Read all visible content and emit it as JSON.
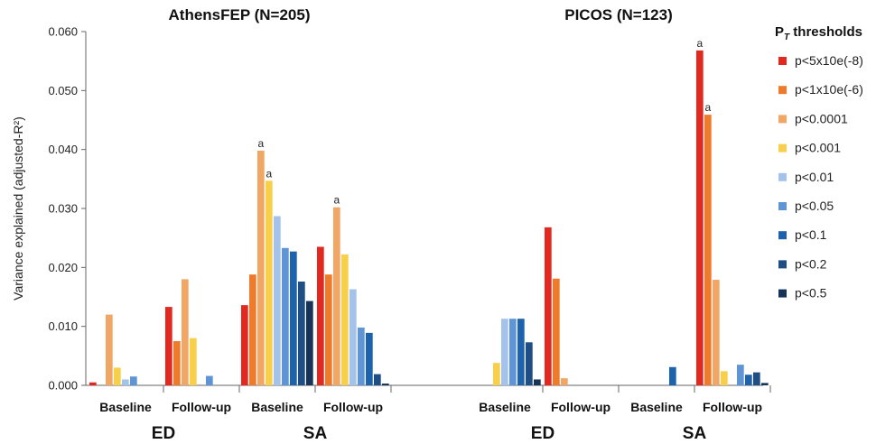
{
  "chart_data": {
    "type": "bar",
    "ylabel": "Variance explained (adjusted-R²)",
    "ylim": [
      0,
      0.06
    ],
    "yticks": [
      "0.000",
      "0.010",
      "0.020",
      "0.030",
      "0.040",
      "0.050",
      "0.060"
    ],
    "legend": {
      "title_main": "P",
      "title_sub": "T",
      "title_rest": " thresholds",
      "position": "right"
    },
    "series": [
      {
        "name": "p<5x10e(-8)",
        "color": "#e3281f"
      },
      {
        "name": "p<1x10e(-6)",
        "color": "#ee7a2c"
      },
      {
        "name": "p<0.0001",
        "color": "#f2a664"
      },
      {
        "name": "p<0.001",
        "color": "#f7cf4b"
      },
      {
        "name": "p<0.01",
        "color": "#a4c3ea"
      },
      {
        "name": "p<0.05",
        "color": "#5f95d4"
      },
      {
        "name": "p<0.1",
        "color": "#1c62ad"
      },
      {
        "name": "p<0.2",
        "color": "#1f4e85"
      },
      {
        "name": "p<0.5",
        "color": "#163459"
      }
    ],
    "panels": [
      {
        "title": "AthensFEP (N=205)",
        "groups": [
          {
            "label": "ED",
            "timepoints": [
              {
                "label": "Baseline",
                "values": [
                  0.0005,
                  0.0,
                  0.012,
                  0.003,
                  0.001,
                  0.0015,
                  0.0,
                  0.0,
                  0.0
                ],
                "annotations": []
              },
              {
                "label": "Follow-up",
                "values": [
                  0.0133,
                  0.0075,
                  0.018,
                  0.008,
                  0.0,
                  0.0016,
                  0.0,
                  0.0,
                  0.0
                ],
                "annotations": []
              }
            ]
          },
          {
            "label": "SA",
            "timepoints": [
              {
                "label": "Baseline",
                "values": [
                  0.0136,
                  0.0188,
                  0.0398,
                  0.0347,
                  0.0287,
                  0.0233,
                  0.0227,
                  0.0176,
                  0.0143
                ],
                "annotations": [
                  {
                    "series": 2,
                    "text": "a"
                  },
                  {
                    "series": 3,
                    "text": "a"
                  }
                ]
              },
              {
                "label": "Follow-up",
                "values": [
                  0.0235,
                  0.0188,
                  0.0302,
                  0.0222,
                  0.0163,
                  0.0098,
                  0.0089,
                  0.0019,
                  0.0003
                ],
                "annotations": [
                  {
                    "series": 2,
                    "text": "a"
                  }
                ]
              }
            ]
          }
        ]
      },
      {
        "title": "PICOS (N=123)",
        "groups": [
          {
            "label": "ED",
            "timepoints": [
              {
                "label": "Baseline",
                "values": [
                  0.0,
                  0.0,
                  0.0,
                  0.0038,
                  0.0113,
                  0.0113,
                  0.0113,
                  0.0073,
                  0.001
                ],
                "annotations": []
              },
              {
                "label": "Follow-up",
                "values": [
                  0.0268,
                  0.0181,
                  0.0012,
                  0.0,
                  0.0,
                  0.0,
                  0.0,
                  0.0,
                  0.0
                ],
                "annotations": []
              }
            ]
          },
          {
            "label": "SA",
            "timepoints": [
              {
                "label": "Baseline",
                "values": [
                  0.0,
                  0.0,
                  0.0,
                  0.0,
                  0.0,
                  0.0,
                  0.0031,
                  0.0,
                  0.0
                ],
                "annotations": []
              },
              {
                "label": "Follow-up",
                "values": [
                  0.0568,
                  0.0459,
                  0.0179,
                  0.0024,
                  0.0,
                  0.0035,
                  0.0018,
                  0.0022,
                  0.0004
                ],
                "annotations": [
                  {
                    "series": 0,
                    "text": "a"
                  },
                  {
                    "series": 1,
                    "text": "a"
                  }
                ]
              }
            ]
          }
        ]
      }
    ]
  }
}
